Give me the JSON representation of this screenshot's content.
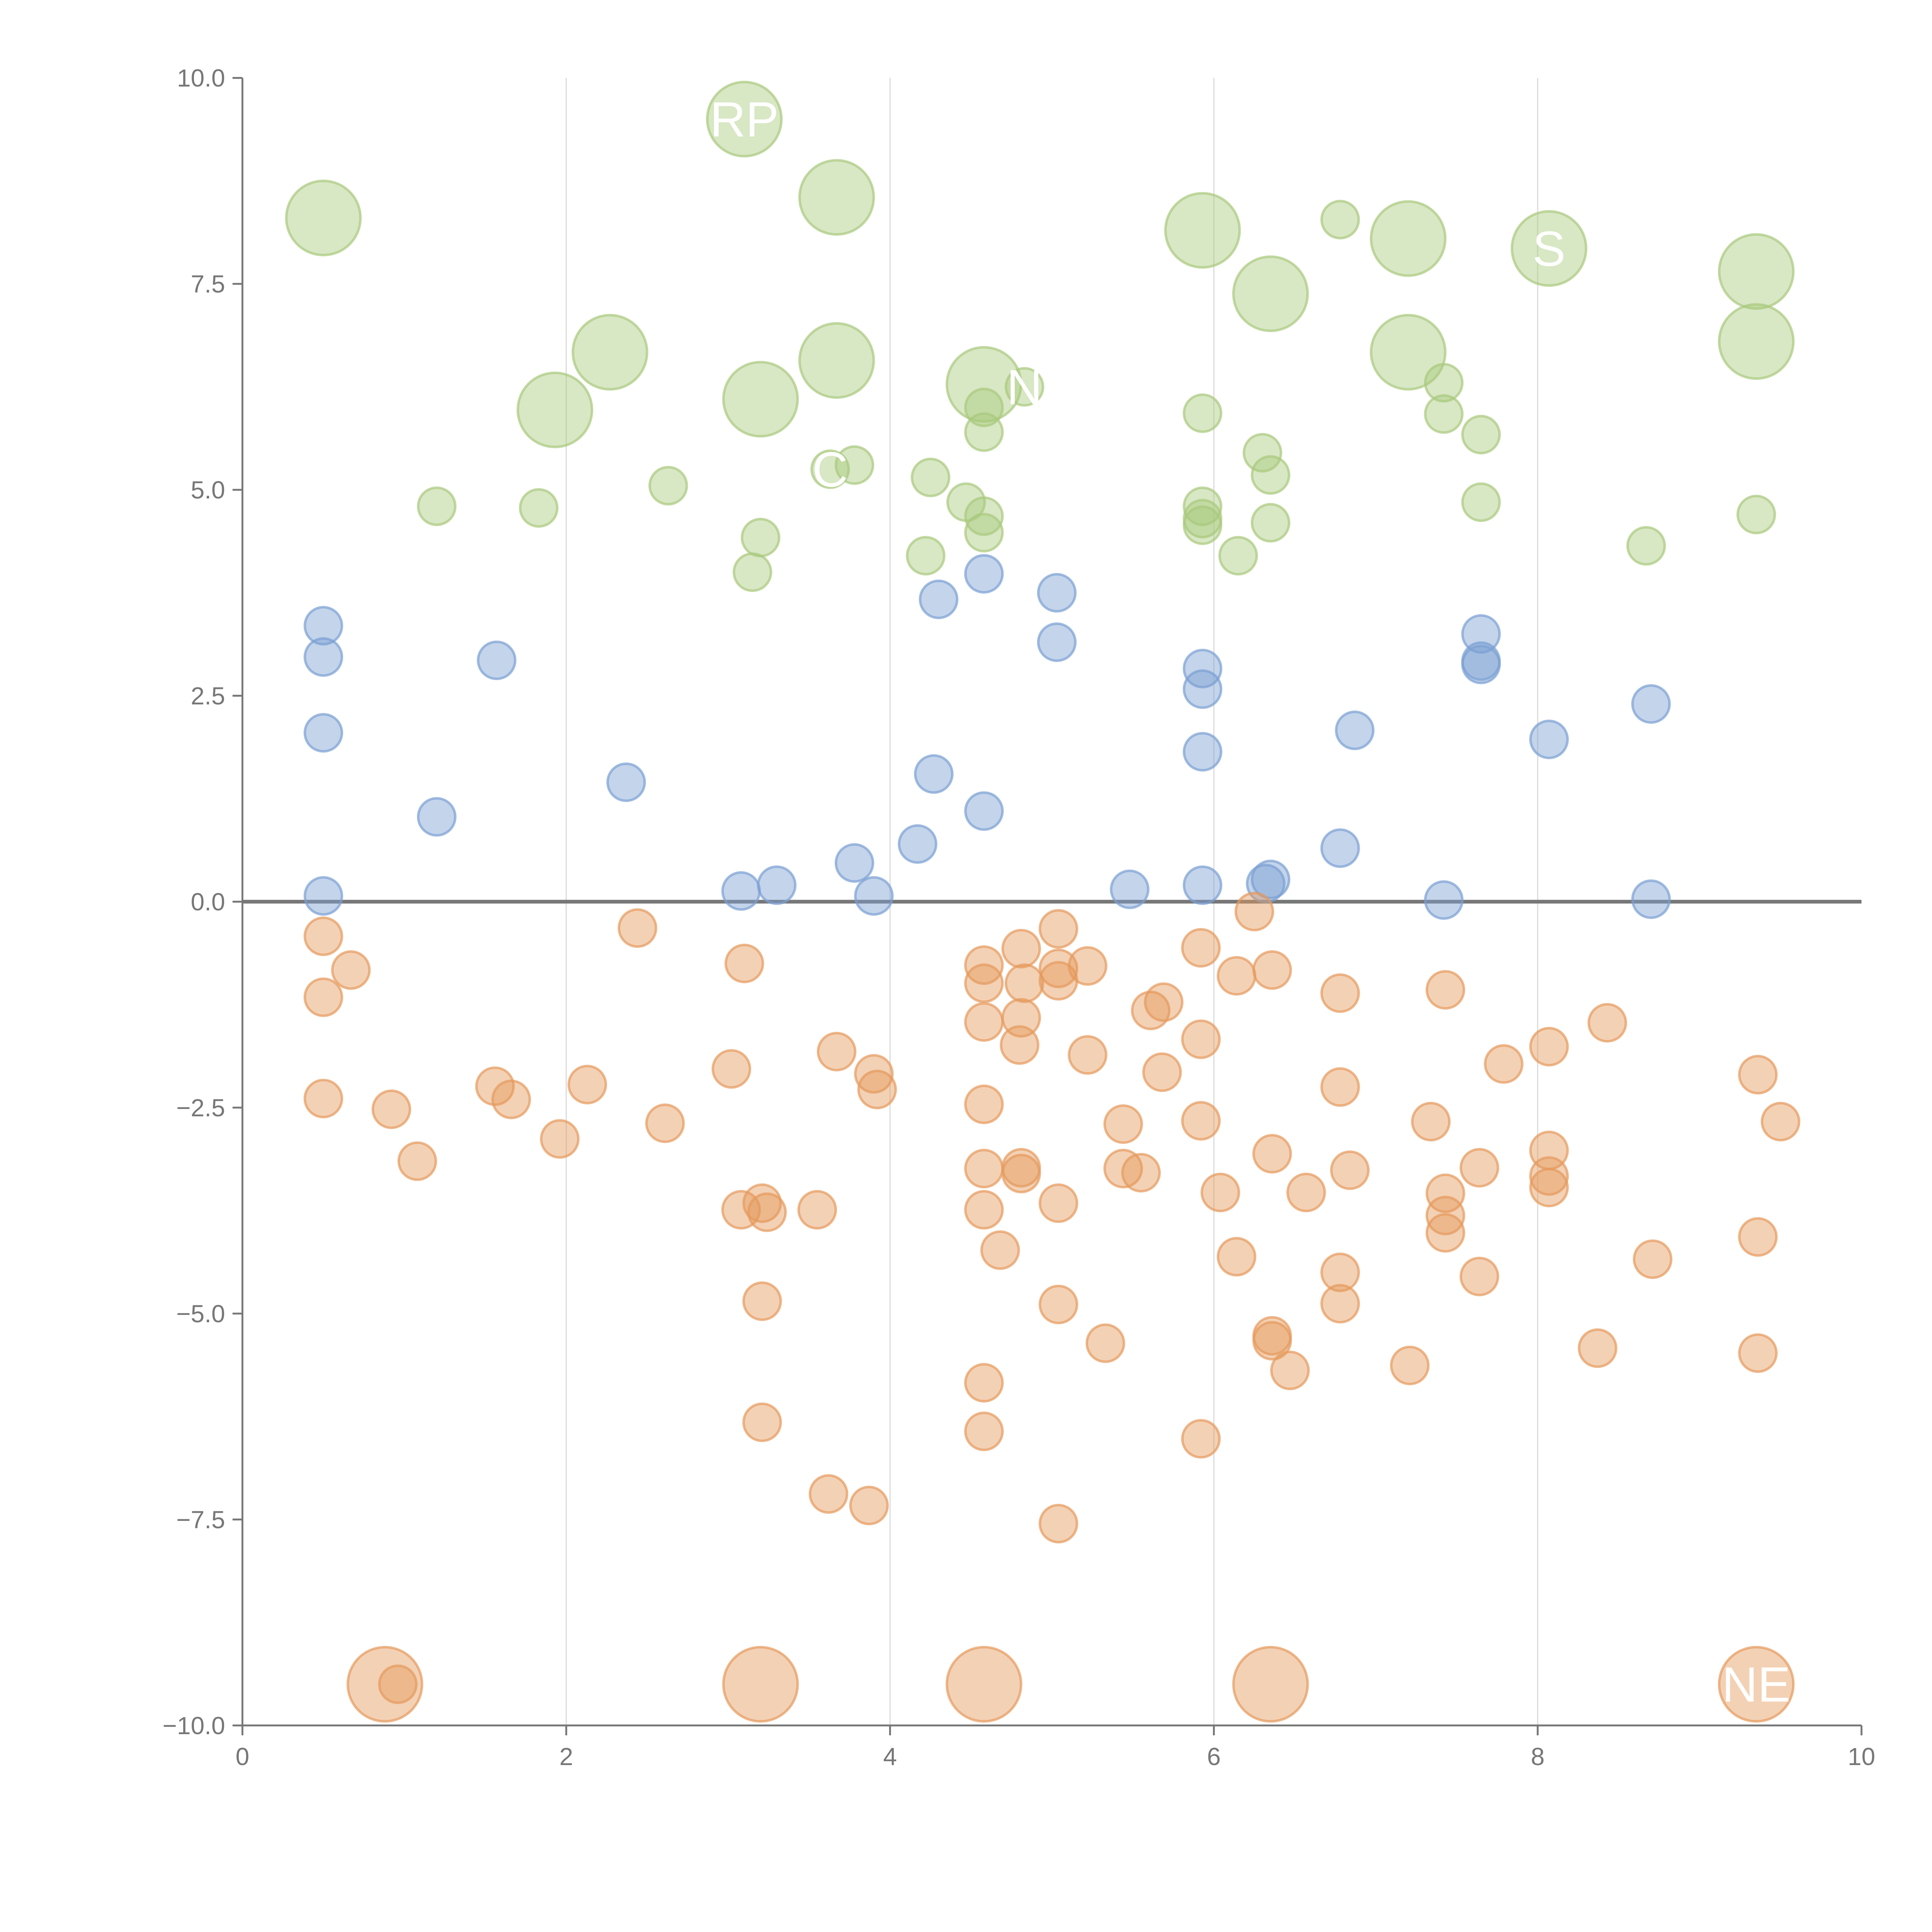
{
  "chart_data": {
    "type": "scatter",
    "title": "",
    "xlabel": "",
    "ylabel": "",
    "xlim": [
      0,
      10
    ],
    "ylim": [
      -10,
      10
    ],
    "grid": "vertical",
    "x_ticks": [
      0,
      2,
      4,
      6,
      8,
      10
    ],
    "x_tick_labels": [
      "0",
      "2",
      "4",
      "6",
      "8",
      "10"
    ],
    "y_ticks": [
      10,
      7.5,
      5,
      2.5,
      0,
      -2.5,
      -5,
      -7.5,
      -10
    ],
    "y_tick_labels": [
      "10.0",
      "7.5",
      "5.0",
      "2.5",
      "0.0",
      "−2.5",
      "−5.0",
      "−7.5",
      "−10.0"
    ],
    "colors": {
      "green": "#a9c97d",
      "blue": "#7a9fd3",
      "orange": "#e59a5c",
      "axis": "#777777",
      "grid": "#dddddd"
    },
    "point_fields": [
      "x",
      "y",
      "size"
    ],
    "series": [
      {
        "name": "green",
        "points": [
          [
            0.5,
            8.3,
            3
          ],
          [
            3.1,
            9.5,
            3
          ],
          [
            3.67,
            8.55,
            3
          ],
          [
            5.93,
            8.15,
            3
          ],
          [
            7.2,
            8.05,
            3
          ],
          [
            8.07,
            7.93,
            3
          ],
          [
            9.35,
            7.65,
            3
          ],
          [
            6.35,
            7.38,
            3
          ],
          [
            2.27,
            6.67,
            3
          ],
          [
            7.2,
            6.67,
            3
          ],
          [
            9.35,
            6.8,
            3
          ],
          [
            3.67,
            6.57,
            3
          ],
          [
            1.93,
            5.97,
            3
          ],
          [
            3.2,
            6.1,
            3
          ],
          [
            4.58,
            6.28,
            3
          ],
          [
            1.2,
            4.8,
            1
          ],
          [
            1.83,
            4.78,
            1
          ],
          [
            2.63,
            5.05,
            1
          ],
          [
            3.2,
            4.42,
            1
          ],
          [
            3.15,
            4.0,
            1
          ],
          [
            3.63,
            5.25,
            1
          ],
          [
            3.78,
            5.3,
            1
          ],
          [
            4.25,
            5.15,
            1
          ],
          [
            4.22,
            4.2,
            1
          ],
          [
            4.47,
            4.85,
            1
          ],
          [
            4.58,
            4.68,
            1
          ],
          [
            4.58,
            4.48,
            1
          ],
          [
            4.58,
            6.0,
            1
          ],
          [
            4.58,
            5.7,
            1
          ],
          [
            4.83,
            6.25,
            1
          ],
          [
            5.93,
            5.93,
            1
          ],
          [
            5.93,
            4.8,
            1
          ],
          [
            5.93,
            4.65,
            1
          ],
          [
            5.93,
            4.57,
            1
          ],
          [
            6.15,
            4.2,
            1
          ],
          [
            6.3,
            5.45,
            1
          ],
          [
            6.35,
            5.18,
            1
          ],
          [
            6.35,
            4.6,
            1
          ],
          [
            6.78,
            8.28,
            1
          ],
          [
            7.42,
            6.3,
            1
          ],
          [
            7.42,
            5.92,
            1
          ],
          [
            7.65,
            5.67,
            1
          ],
          [
            7.65,
            4.85,
            1
          ],
          [
            8.67,
            4.32,
            1
          ],
          [
            9.35,
            4.7,
            1
          ]
        ]
      },
      {
        "name": "blue",
        "points": [
          [
            0.5,
            3.35,
            1
          ],
          [
            0.5,
            2.97,
            1
          ],
          [
            0.5,
            2.05,
            1
          ],
          [
            0.5,
            0.07,
            1
          ],
          [
            1.2,
            1.03,
            1
          ],
          [
            1.57,
            2.93,
            1
          ],
          [
            2.37,
            1.45,
            1
          ],
          [
            3.08,
            0.13,
            1
          ],
          [
            3.3,
            0.2,
            1
          ],
          [
            3.78,
            0.47,
            1
          ],
          [
            3.9,
            0.07,
            1
          ],
          [
            4.17,
            0.7,
            1
          ],
          [
            4.27,
            1.55,
            1
          ],
          [
            4.3,
            3.67,
            1
          ],
          [
            4.58,
            3.98,
            1
          ],
          [
            4.58,
            1.1,
            1
          ],
          [
            5.03,
            3.75,
            1
          ],
          [
            5.03,
            3.15,
            1
          ],
          [
            5.48,
            0.15,
            1
          ],
          [
            5.93,
            2.83,
            1
          ],
          [
            5.93,
            2.58,
            1
          ],
          [
            5.93,
            1.82,
            1
          ],
          [
            5.93,
            0.2,
            1
          ],
          [
            6.32,
            0.22,
            1
          ],
          [
            6.35,
            0.27,
            1
          ],
          [
            6.78,
            0.65,
            1
          ],
          [
            6.87,
            2.08,
            1
          ],
          [
            7.42,
            0.02,
            1
          ],
          [
            7.65,
            3.25,
            1
          ],
          [
            7.65,
            2.92,
            1
          ],
          [
            7.65,
            2.88,
            1
          ],
          [
            8.07,
            1.97,
            1
          ],
          [
            8.7,
            2.4,
            1
          ],
          [
            8.7,
            0.03,
            1
          ]
        ]
      },
      {
        "name": "orange",
        "points": [
          [
            0.88,
            -9.5,
            3
          ],
          [
            3.2,
            -9.5,
            3
          ],
          [
            4.58,
            -9.5,
            3
          ],
          [
            6.35,
            -9.5,
            3
          ],
          [
            9.35,
            -9.5,
            3
          ],
          [
            0.96,
            -9.5,
            1
          ],
          [
            0.5,
            -0.42,
            1
          ],
          [
            0.67,
            -0.83,
            1
          ],
          [
            0.5,
            -1.16,
            1
          ],
          [
            0.5,
            -2.39,
            1
          ],
          [
            0.92,
            -2.52,
            1
          ],
          [
            1.08,
            -3.15,
            1
          ],
          [
            1.56,
            -2.24,
            1
          ],
          [
            1.66,
            -2.4,
            1
          ],
          [
            1.96,
            -2.88,
            1
          ],
          [
            2.13,
            -2.22,
            1
          ],
          [
            2.44,
            -0.32,
            1
          ],
          [
            2.61,
            -2.69,
            1
          ],
          [
            3.02,
            -2.03,
            1
          ],
          [
            3.1,
            -0.75,
            1
          ],
          [
            3.08,
            -3.74,
            1
          ],
          [
            3.21,
            -3.66,
            1
          ],
          [
            3.24,
            -3.77,
            1
          ],
          [
            3.21,
            -4.85,
            1
          ],
          [
            3.21,
            -6.32,
            1
          ],
          [
            3.55,
            -3.74,
            1
          ],
          [
            3.62,
            -7.19,
            1
          ],
          [
            3.67,
            -1.82,
            1
          ],
          [
            3.9,
            -2.09,
            1
          ],
          [
            3.92,
            -2.28,
            1
          ],
          [
            3.87,
            -7.33,
            1
          ],
          [
            4.58,
            -0.77,
            1
          ],
          [
            4.58,
            -0.99,
            1
          ],
          [
            4.58,
            -1.46,
            1
          ],
          [
            4.58,
            -2.46,
            1
          ],
          [
            4.58,
            -3.24,
            1
          ],
          [
            4.58,
            -3.74,
            1
          ],
          [
            4.58,
            -5.84,
            1
          ],
          [
            4.58,
            -6.43,
            1
          ],
          [
            4.68,
            -4.23,
            1
          ],
          [
            4.81,
            -0.57,
            1
          ],
          [
            4.83,
            -0.99,
            1
          ],
          [
            4.81,
            -1.41,
            1
          ],
          [
            4.8,
            -1.74,
            1
          ],
          [
            4.81,
            -3.23,
            1
          ],
          [
            4.81,
            -3.3,
            1
          ],
          [
            5.04,
            -0.33,
            1
          ],
          [
            5.04,
            -0.81,
            1
          ],
          [
            5.04,
            -0.96,
            1
          ],
          [
            5.22,
            -0.78,
            1
          ],
          [
            5.22,
            -1.86,
            1
          ],
          [
            5.04,
            -3.66,
            1
          ],
          [
            5.04,
            -4.89,
            1
          ],
          [
            5.04,
            -7.55,
            1
          ],
          [
            5.33,
            -5.36,
            1
          ],
          [
            5.44,
            -2.7,
            1
          ],
          [
            5.44,
            -3.24,
            1
          ],
          [
            5.55,
            -3.29,
            1
          ],
          [
            5.61,
            -1.32,
            1
          ],
          [
            5.69,
            -1.22,
            1
          ],
          [
            5.68,
            -2.07,
            1
          ],
          [
            5.92,
            -0.56,
            1
          ],
          [
            5.92,
            -1.67,
            1
          ],
          [
            5.92,
            -2.66,
            1
          ],
          [
            5.92,
            -6.52,
            1
          ],
          [
            6.04,
            -3.53,
            1
          ],
          [
            6.14,
            -0.9,
            1
          ],
          [
            6.14,
            -4.31,
            1
          ],
          [
            6.25,
            -0.12,
            1
          ],
          [
            6.36,
            -0.83,
            1
          ],
          [
            6.36,
            -3.06,
            1
          ],
          [
            6.36,
            -5.27,
            1
          ],
          [
            6.36,
            -5.33,
            1
          ],
          [
            6.47,
            -5.69,
            1
          ],
          [
            6.57,
            -3.53,
            1
          ],
          [
            6.78,
            -1.11,
            1
          ],
          [
            6.78,
            -2.25,
            1
          ],
          [
            6.84,
            -3.26,
            1
          ],
          [
            6.78,
            -4.5,
            1
          ],
          [
            6.78,
            -4.88,
            1
          ],
          [
            7.21,
            -5.63,
            1
          ],
          [
            7.34,
            -2.67,
            1
          ],
          [
            7.43,
            -1.07,
            1
          ],
          [
            7.43,
            -3.54,
            1
          ],
          [
            7.43,
            -3.81,
            1
          ],
          [
            7.43,
            -4.02,
            1
          ],
          [
            7.64,
            -3.23,
            1
          ],
          [
            7.64,
            -4.55,
            1
          ],
          [
            7.79,
            -1.97,
            1
          ],
          [
            8.07,
            -1.76,
            1
          ],
          [
            8.07,
            -3.02,
            1
          ],
          [
            8.07,
            -3.33,
            1
          ],
          [
            8.07,
            -3.47,
            1
          ],
          [
            8.43,
            -1.47,
            1
          ],
          [
            8.37,
            -5.42,
            1
          ],
          [
            8.71,
            -4.34,
            1
          ],
          [
            9.36,
            -2.1,
            1
          ],
          [
            9.5,
            -2.67,
            1
          ],
          [
            9.36,
            -4.07,
            1
          ],
          [
            9.36,
            -5.48,
            1
          ]
        ]
      }
    ],
    "annotations": [
      {
        "text": "RP",
        "x": 3.1,
        "y": 9.5
      },
      {
        "text": "C",
        "x": 3.63,
        "y": 5.25
      },
      {
        "text": "N",
        "x": 4.83,
        "y": 6.25
      },
      {
        "text": "S",
        "x": 8.07,
        "y": 7.93
      },
      {
        "text": "NE",
        "x": 9.35,
        "y": -9.5
      }
    ]
  }
}
